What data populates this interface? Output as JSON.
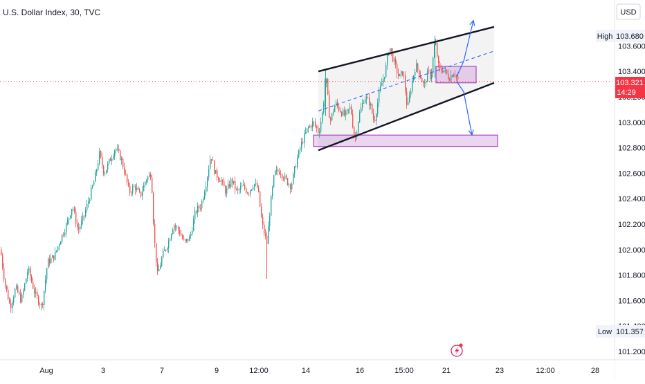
{
  "header": {
    "title": "U.S. Dollar Index, 30, TVC"
  },
  "scale": {
    "currency_label": "USD"
  },
  "badges": {
    "high_label": "High",
    "high_value": "103.680",
    "low_label": "Low",
    "low_value": "101.357",
    "last_value": "103.321",
    "countdown": "14:29"
  },
  "colors": {
    "up": "#26a69a",
    "down": "#ef5350",
    "channel": "#131722",
    "zone": "#9c27b0",
    "projection": "#2962ff",
    "last_price": "#f23645"
  },
  "chart_data": {
    "type": "candlestick",
    "title": "U.S. Dollar Index, 30, TVC",
    "ylim": [
      101.1,
      103.8
    ],
    "yticks": [
      "103.600",
      "103.400",
      "103.200",
      "103.000",
      "102.800",
      "102.600",
      "102.400",
      "102.200",
      "102.000",
      "101.800",
      "101.600",
      "101.400",
      "101.200"
    ],
    "xticks": [
      "Aug",
      "3",
      "7",
      "9",
      "12:00",
      "14",
      "16",
      "15:00",
      "21",
      "23",
      "12:00",
      "28"
    ],
    "last_price": 103.321,
    "high": 103.68,
    "low": 101.357,
    "path": [
      [
        0,
        102.0
      ],
      [
        6,
        101.75
      ],
      [
        14,
        101.55
      ],
      [
        22,
        101.7
      ],
      [
        30,
        101.6
      ],
      [
        40,
        101.85
      ],
      [
        50,
        101.65
      ],
      [
        60,
        101.55
      ],
      [
        68,
        101.9
      ],
      [
        78,
        101.95
      ],
      [
        88,
        102.1
      ],
      [
        96,
        102.2
      ],
      [
        104,
        102.35
      ],
      [
        112,
        102.15
      ],
      [
        120,
        102.25
      ],
      [
        128,
        102.4
      ],
      [
        136,
        102.55
      ],
      [
        143,
        102.75
      ],
      [
        150,
        102.6
      ],
      [
        158,
        102.7
      ],
      [
        166,
        102.8
      ],
      [
        174,
        102.72
      ],
      [
        180,
        102.6
      ],
      [
        186,
        102.45
      ],
      [
        194,
        102.5
      ],
      [
        202,
        102.42
      ],
      [
        210,
        102.55
      ],
      [
        218,
        102.6
      ],
      [
        222,
        102.1
      ],
      [
        227,
        101.8
      ],
      [
        234,
        101.95
      ],
      [
        242,
        102.05
      ],
      [
        250,
        102.2
      ],
      [
        258,
        102.15
      ],
      [
        266,
        102.05
      ],
      [
        274,
        102.1
      ],
      [
        282,
        102.3
      ],
      [
        290,
        102.35
      ],
      [
        298,
        102.55
      ],
      [
        304,
        102.75
      ],
      [
        310,
        102.6
      ],
      [
        318,
        102.55
      ],
      [
        326,
        102.45
      ],
      [
        334,
        102.55
      ],
      [
        342,
        102.45
      ],
      [
        350,
        102.5
      ],
      [
        358,
        102.45
      ],
      [
        366,
        102.52
      ],
      [
        372,
        102.48
      ],
      [
        378,
        102.2
      ],
      [
        385,
        102.05
      ],
      [
        390,
        102.35
      ],
      [
        396,
        102.6
      ],
      [
        404,
        102.62
      ],
      [
        412,
        102.55
      ],
      [
        420,
        102.5
      ],
      [
        428,
        102.7
      ],
      [
        436,
        102.85
      ],
      [
        444,
        102.95
      ],
      [
        452,
        103.0
      ],
      [
        460,
        102.92
      ],
      [
        466,
        103.1
      ],
      [
        470,
        103.38
      ],
      [
        476,
        103.0
      ],
      [
        484,
        103.15
      ],
      [
        490,
        103.1
      ],
      [
        498,
        103.05
      ],
      [
        506,
        103.12
      ],
      [
        512,
        102.85
      ],
      [
        518,
        103.05
      ],
      [
        526,
        103.2
      ],
      [
        534,
        103.15
      ],
      [
        540,
        103.0
      ],
      [
        548,
        103.25
      ],
      [
        556,
        103.4
      ],
      [
        562,
        103.6
      ],
      [
        570,
        103.45
      ],
      [
        576,
        103.35
      ],
      [
        582,
        103.4
      ],
      [
        588,
        103.1
      ],
      [
        594,
        103.3
      ],
      [
        600,
        103.45
      ],
      [
        606,
        103.38
      ],
      [
        612,
        103.28
      ],
      [
        618,
        103.4
      ],
      [
        622,
        103.35
      ],
      [
        628,
        103.65
      ],
      [
        634,
        103.4
      ],
      [
        640,
        103.42
      ],
      [
        648,
        103.35
      ],
      [
        656,
        103.4
      ],
      [
        662,
        103.32
      ]
    ],
    "channel_upper": [
      [
        460,
        103.4
      ],
      [
        714,
        103.75
      ]
    ],
    "channel_lower": [
      [
        460,
        102.78
      ],
      [
        714,
        103.31
      ]
    ],
    "channel_mid": [
      [
        460,
        103.09
      ],
      [
        714,
        103.56
      ]
    ],
    "resistance_zone": {
      "x": [
        630,
        688
      ],
      "y": [
        103.31,
        103.44
      ]
    },
    "support_zone": {
      "x": [
        453,
        719
      ],
      "y": [
        102.81,
        102.9
      ]
    },
    "projection_up": [
      [
        660,
        103.36
      ],
      [
        670,
        103.48
      ],
      [
        684,
        103.8
      ]
    ],
    "projection_down": [
      [
        660,
        103.32
      ],
      [
        670,
        103.24
      ],
      [
        682,
        102.9
      ]
    ]
  }
}
